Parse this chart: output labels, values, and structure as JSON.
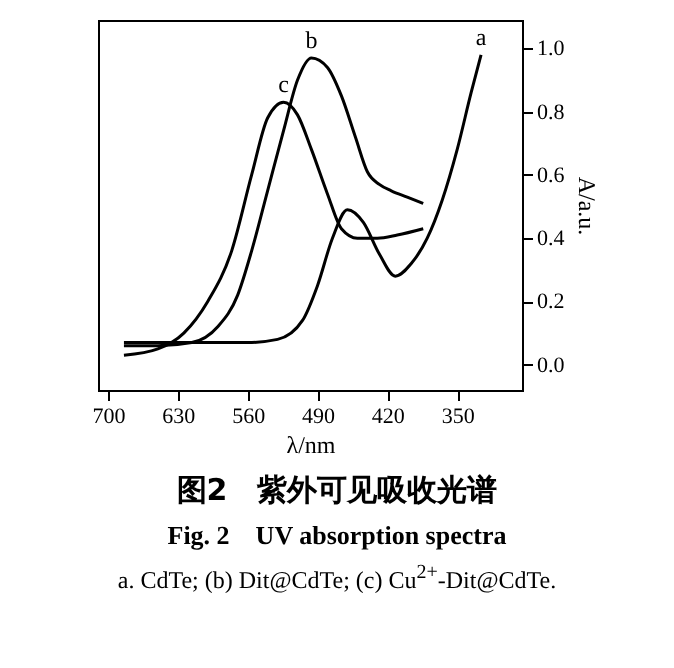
{
  "chart_data": {
    "type": "line",
    "title": "图2　紫外可见吸收光谱",
    "subtitle": "Fig. 2　UV absorption spectra",
    "annotations": [
      "a. CdTe; (b) Dit@CdTe; (c) Cu$^{2+}$-Dit@CdTe."
    ],
    "xlabel": "λ/nm",
    "ylabel": "A/a.u.",
    "xlim": [
      710,
      285
    ],
    "ylim": [
      -0.08,
      1.09
    ],
    "xticks": [
      700,
      630,
      560,
      490,
      420,
      350
    ],
    "yticks": [
      {
        "value": 0,
        "label": "0.0"
      },
      {
        "value": 0.2,
        "label": "0.2"
      },
      {
        "value": 0.4,
        "label": "0.4"
      },
      {
        "value": 0.6,
        "label": "0.6"
      },
      {
        "value": 0.8,
        "label": "0.8"
      },
      {
        "value": 1,
        "label": "1.0"
      }
    ],
    "grid": false,
    "legend": false,
    "series": [
      {
        "name": "a",
        "color": "#000000",
        "x": [
          684,
          620,
          560,
          530,
          505,
          490,
          475,
          460,
          444,
          428,
          412,
          396,
          380,
          365,
          350,
          336,
          326
        ],
        "values": [
          0.07,
          0.07,
          0.07,
          0.08,
          0.14,
          0.25,
          0.4,
          0.49,
          0.45,
          0.35,
          0.28,
          0.32,
          0.4,
          0.52,
          0.68,
          0.86,
          0.98
        ]
      },
      {
        "name": "b",
        "color": "#000000",
        "x": [
          684,
          650,
          616,
          590,
          570,
          556,
          540,
          524,
          510,
          496,
          480,
          466,
          452,
          440,
          428,
          416,
          400,
          384
        ],
        "values": [
          0.06,
          0.06,
          0.07,
          0.12,
          0.22,
          0.36,
          0.55,
          0.74,
          0.9,
          0.97,
          0.94,
          0.85,
          0.72,
          0.61,
          0.57,
          0.55,
          0.53,
          0.51
        ]
      },
      {
        "name": "c",
        "color": "#000000",
        "x": [
          684,
          650,
          624,
          600,
          576,
          556,
          540,
          524,
          510,
          496,
          480,
          466,
          450,
          430,
          410,
          384
        ],
        "values": [
          0.03,
          0.05,
          0.1,
          0.2,
          0.36,
          0.6,
          0.78,
          0.83,
          0.79,
          0.68,
          0.54,
          0.43,
          0.4,
          0.4,
          0.41,
          0.43
        ]
      }
    ]
  }
}
